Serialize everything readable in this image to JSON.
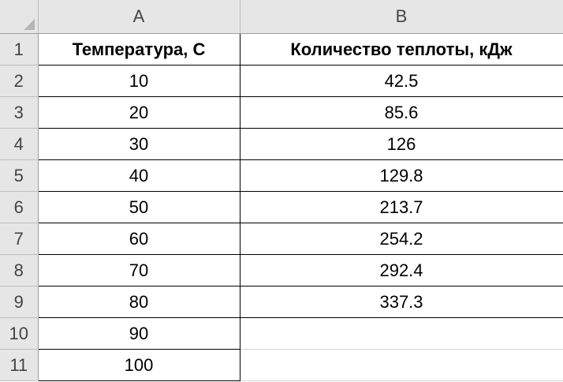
{
  "column_headers": [
    "A",
    "B"
  ],
  "row_numbers": [
    "1",
    "2",
    "3",
    "4",
    "5",
    "6",
    "7",
    "8",
    "9",
    "10",
    "11"
  ],
  "table": {
    "headers": {
      "a": "Температура, С",
      "b": "Количество теплоты, кДж"
    },
    "rows": [
      {
        "a": "10",
        "b": "42.5"
      },
      {
        "a": "20",
        "b": "85.6"
      },
      {
        "a": "30",
        "b": "126"
      },
      {
        "a": "40",
        "b": "129.8"
      },
      {
        "a": "50",
        "b": "213.7"
      },
      {
        "a": "60",
        "b": "254.2"
      },
      {
        "a": "70",
        "b": "292.4"
      },
      {
        "a": "80",
        "b": "337.3"
      },
      {
        "a": "90",
        "b": ""
      },
      {
        "a": "100",
        "b": ""
      }
    ]
  }
}
